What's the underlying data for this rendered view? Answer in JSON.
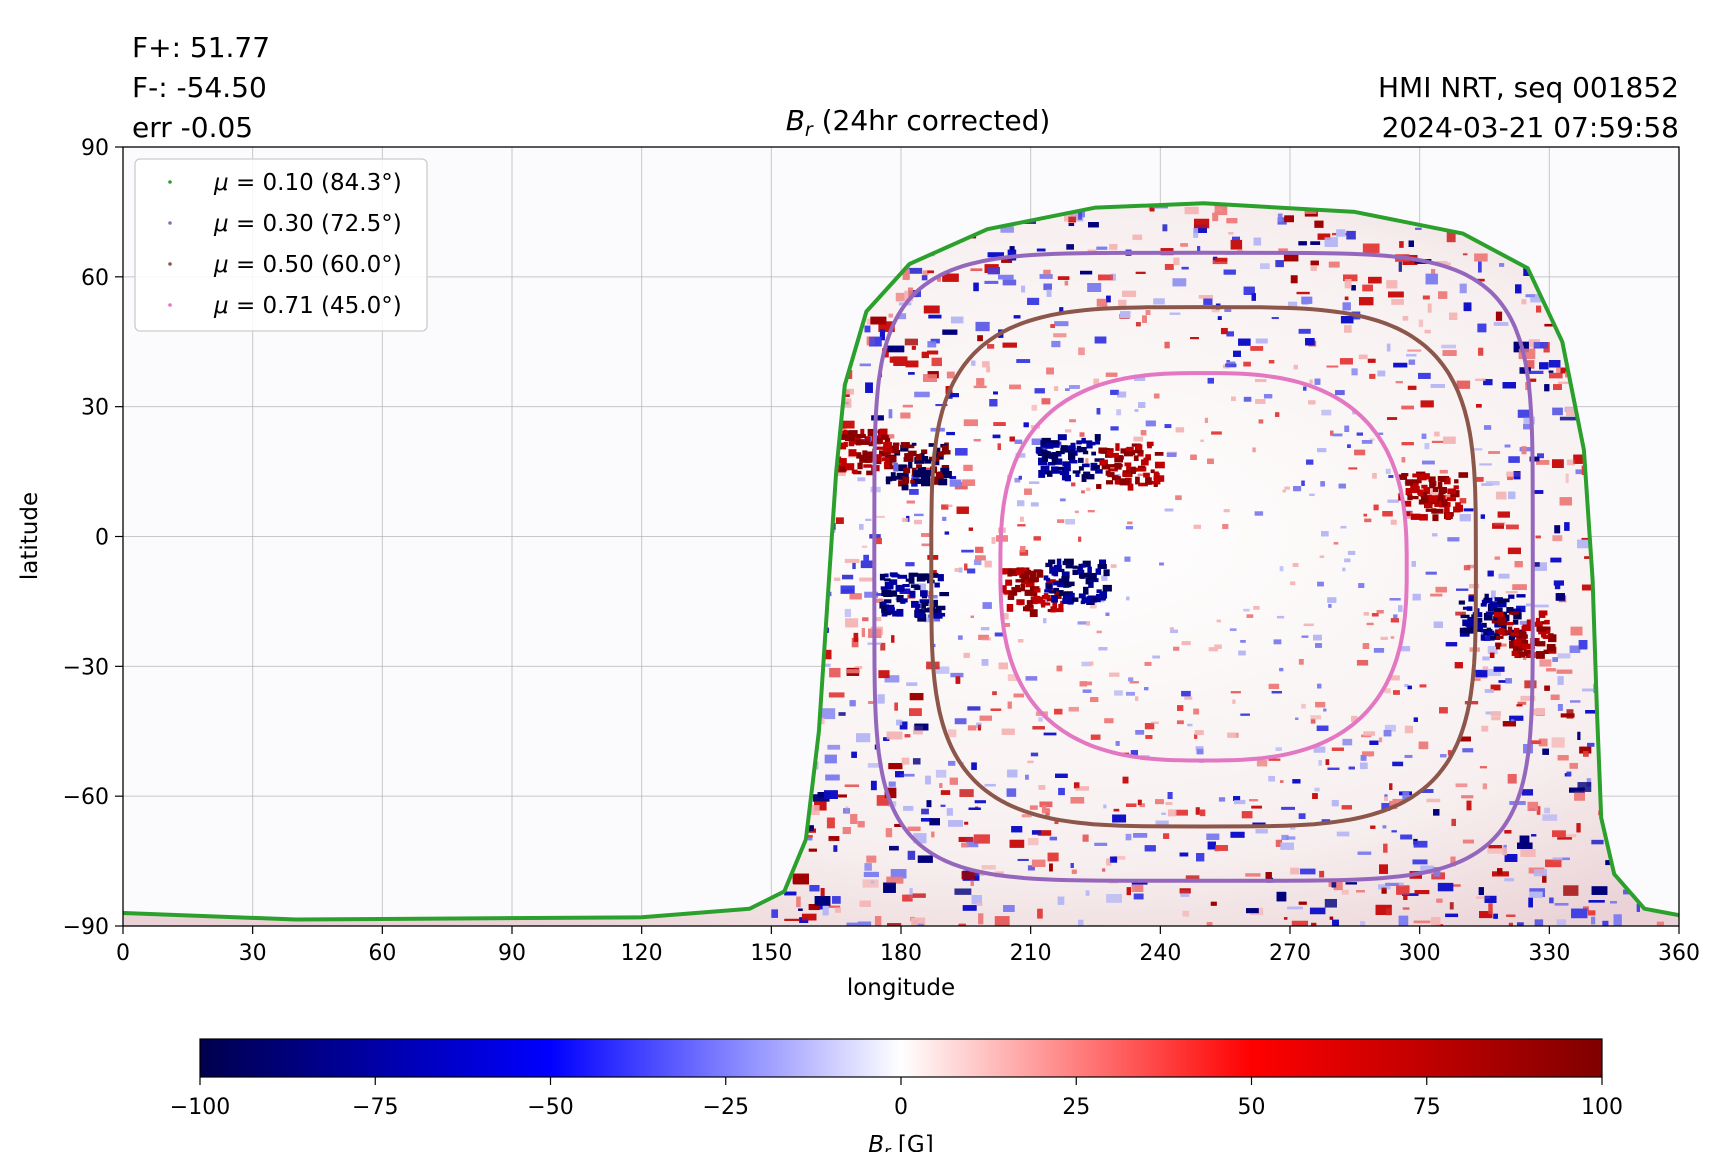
{
  "header": {
    "flux_pos": "F+: 51.77",
    "flux_neg": "F-: -54.50",
    "error": "err -0.05",
    "instrument": "HMI NRT, seq 001852",
    "timestamp": "2024-03-21 07:59:58"
  },
  "chart_data": {
    "type": "heatmap",
    "title_symbol": "B",
    "title_subscript": "r",
    "title_rest": " (24hr corrected)",
    "xlabel": "longitude",
    "ylabel": "latitude",
    "xlim": [
      0,
      360
    ],
    "ylim": [
      -90,
      90
    ],
    "xticks": [
      0,
      30,
      60,
      90,
      120,
      150,
      180,
      210,
      240,
      270,
      300,
      330,
      360
    ],
    "yticks": [
      -90,
      -60,
      -30,
      0,
      30,
      60,
      90
    ],
    "ytick_labels": [
      "−90",
      "−60",
      "−30",
      "0",
      "30",
      "60",
      "90"
    ],
    "grid": true,
    "legend_placement": "top-left",
    "disk_center": {
      "lon": 250,
      "lat": -7
    },
    "limb_color": "#2ca02c",
    "series": [
      {
        "name": "μ = 0.10 (84.3°)",
        "label_mu": "μ",
        "label_rest": " = 0.10 (84.3°)",
        "mu": 0.1,
        "angle_deg": 84.3,
        "color": "#2ca02c"
      },
      {
        "name": "μ = 0.30 (72.5°)",
        "label_mu": "μ",
        "label_rest": " = 0.30 (72.5°)",
        "mu": 0.3,
        "angle_deg": 72.5,
        "color": "#9467bd"
      },
      {
        "name": "μ = 0.50 (60.0°)",
        "label_mu": "μ",
        "label_rest": " = 0.50 (60.0°)",
        "mu": 0.5,
        "angle_deg": 60.0,
        "color": "#8c564b"
      },
      {
        "name": "μ = 0.71 (45.0°)",
        "label_mu": "μ",
        "label_rest": " = 0.71 (45.0°)",
        "mu": 0.71,
        "angle_deg": 45.0,
        "color": "#e377c2"
      }
    ],
    "active_regions": [
      {
        "lon": 183,
        "lat": 17,
        "polarity": "mixed"
      },
      {
        "lon": 218,
        "lat": 19,
        "polarity": "negative"
      },
      {
        "lon": 232,
        "lat": 17,
        "polarity": "positive"
      },
      {
        "lon": 182,
        "lat": -13,
        "polarity": "negative"
      },
      {
        "lon": 210,
        "lat": -12,
        "polarity": "positive"
      },
      {
        "lon": 220,
        "lat": -10,
        "polarity": "negative"
      },
      {
        "lon": 316,
        "lat": -18,
        "polarity": "negative"
      },
      {
        "lon": 323,
        "lat": -22,
        "polarity": "positive"
      },
      {
        "lon": 302,
        "lat": 10,
        "polarity": "positive"
      },
      {
        "lon": 170,
        "lat": 20,
        "polarity": "positive"
      }
    ],
    "colorbar": {
      "min": -100,
      "max": 100,
      "ticks": [
        -100,
        -75,
        -50,
        -25,
        0,
        25,
        50,
        75,
        100
      ],
      "tick_labels": [
        "−100",
        "−75",
        "−50",
        "−25",
        "0",
        "25",
        "50",
        "75",
        "100"
      ],
      "label_symbol": "B",
      "label_subscript": "r",
      "label_rest": " [G]",
      "colormap": "seismic",
      "colors": [
        "#00004d",
        "#0000ff",
        "#ffffff",
        "#ff0000",
        "#800000"
      ]
    }
  }
}
